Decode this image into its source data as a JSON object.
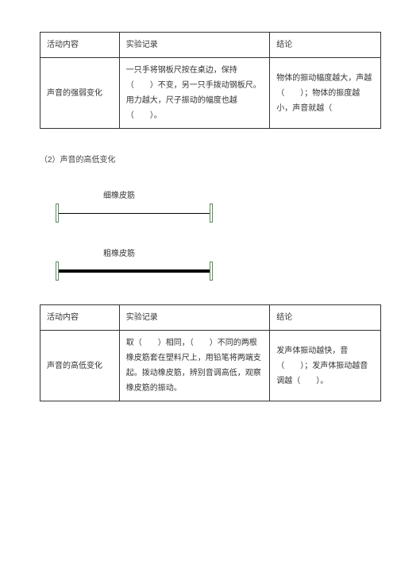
{
  "table1": {
    "headers": [
      "活动内容",
      "实验记录",
      "结论"
    ],
    "row": {
      "activity": "声音的强弱变化",
      "record": "一只手将钢板尺按在桌边，保持（　　）不变，另一只手拨动钢板尺。用力越大，尺子振动的幅度也越（　　）。",
      "conclusion": "物体的振动幅度越大，声越（　　）；物体的振度越小，声音就越（"
    }
  },
  "subtitle2": "（2）声音的高低变化",
  "diagram": {
    "thin_label": "细橡皮筋",
    "thick_label": "粗橡皮筋",
    "post_color": "#5a8a5a",
    "thin_band_color": "#000000",
    "thick_band_color": "#000000",
    "thin_band_height": 1,
    "thick_band_height": 4,
    "band_width": 190,
    "post_width": 4,
    "post_height": 24
  },
  "table2": {
    "headers": [
      "活动内容",
      "实验记录",
      "结论"
    ],
    "row": {
      "activity": "声音的高低变化",
      "record": "取（　　）相同，（　　）不同的两根橡皮筋套在塑料尺上，用铅笔将两端支起。拨动橡皮筋，辨别音调高低，观察橡皮筋的振动。",
      "conclusion": "发声体振动越快，音（　　）；发声体振动越音调越（　　）。"
    }
  },
  "colors": {
    "text": "#333333",
    "border": "#333333",
    "background": "#ffffff"
  }
}
